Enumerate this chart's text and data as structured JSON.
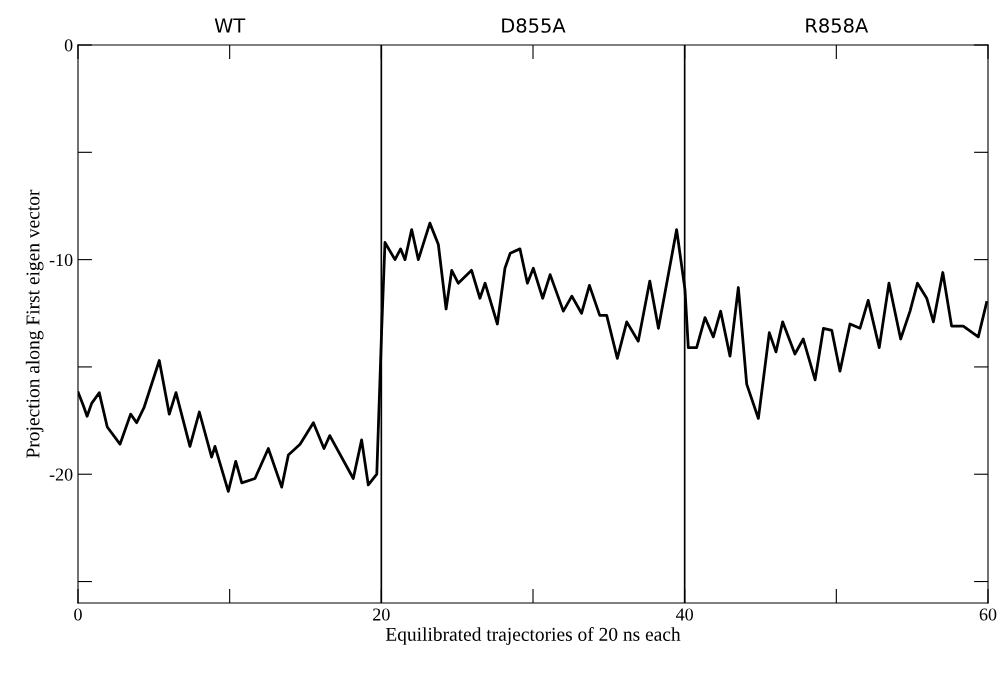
{
  "chart_data": {
    "type": "line",
    "xlabel": "Equilibrated trajectories of 20 ns each",
    "ylabel": "Projection along First eigen vector",
    "xlim": [
      0,
      60
    ],
    "ylim": [
      -26,
      0
    ],
    "xticks": [
      0,
      {
        "value": 10,
        "label": null
      },
      20,
      {
        "value": 30,
        "label": null
      },
      40,
      {
        "value": 50,
        "label": null
      },
      60
    ],
    "yticks": [
      0,
      {
        "value": -5,
        "label": null
      },
      -10,
      {
        "value": -15,
        "label": null
      },
      -20,
      {
        "value": -25,
        "label": null
      }
    ],
    "grid": false,
    "legend": false,
    "marker": "none",
    "line_style": "solid",
    "ref_lines": [
      {
        "axis": "x",
        "value": 20,
        "color": "#000000"
      },
      {
        "axis": "x",
        "value": 40,
        "color": "#000000"
      }
    ],
    "annotations": [
      "WT",
      "D855A",
      "R858A"
    ],
    "series": [
      {
        "color": "#000000",
        "x": [
          0.02,
          0.35,
          0.6,
          0.9,
          1.4,
          1.93,
          2.77,
          3.47,
          3.87,
          4.35,
          5.36,
          6.02,
          6.46,
          7.38,
          8.0,
          8.81,
          9.03,
          9.91,
          10.4,
          10.8,
          11.67,
          12.55,
          13.43,
          13.87,
          14.64,
          15.52,
          16.22,
          16.6,
          18.15,
          18.7,
          19.14,
          19.7,
          20.02,
          20.24,
          20.9,
          21.27,
          21.56,
          22.0,
          22.44,
          23.2,
          23.76,
          24.27,
          24.64,
          25.07,
          25.95,
          26.5,
          26.84,
          27.65,
          28.15,
          28.5,
          29.14,
          29.63,
          30.02,
          30.64,
          31.13,
          32.0,
          32.56,
          33.2,
          33.72,
          34.4,
          34.86,
          35.56,
          36.18,
          36.94,
          37.7,
          38.27,
          39.47,
          40.02,
          40.24,
          40.79,
          41.34,
          41.89,
          42.37,
          42.99,
          43.54,
          44.09,
          44.86,
          45.58,
          46.02,
          46.46,
          47.27,
          47.82,
          48.6,
          49.15,
          49.7,
          50.24,
          50.9,
          51.56,
          52.1,
          52.83,
          53.47,
          54.24,
          54.86,
          55.35,
          55.96,
          56.4,
          57.02,
          57.6,
          58.37,
          59.36,
          59.91
        ],
        "values": [
          -16.2,
          -16.8,
          -17.3,
          -16.7,
          -16.2,
          -17.8,
          -18.6,
          -17.2,
          -17.6,
          -16.9,
          -14.7,
          -17.2,
          -16.2,
          -18.7,
          -17.1,
          -19.2,
          -18.7,
          -20.8,
          -19.4,
          -20.4,
          -20.2,
          -18.8,
          -20.6,
          -19.1,
          -18.6,
          -17.6,
          -18.8,
          -18.2,
          -20.2,
          -18.4,
          -20.5,
          -20.0,
          -13.3,
          -9.2,
          -10.0,
          -9.5,
          -10.0,
          -8.6,
          -10.0,
          -8.3,
          -9.3,
          -12.3,
          -10.5,
          -11.1,
          -10.5,
          -11.8,
          -11.1,
          -13.0,
          -10.4,
          -9.7,
          -9.5,
          -11.1,
          -10.4,
          -11.8,
          -10.7,
          -12.4,
          -11.7,
          -12.5,
          -11.2,
          -12.6,
          -12.6,
          -14.6,
          -12.9,
          -13.8,
          -11.0,
          -13.2,
          -8.6,
          -11.4,
          -14.1,
          -14.1,
          -12.7,
          -13.6,
          -12.4,
          -14.5,
          -11.3,
          -15.8,
          -17.4,
          -13.4,
          -14.3,
          -12.9,
          -14.4,
          -13.7,
          -15.6,
          -13.2,
          -13.3,
          -15.2,
          -13.0,
          -13.2,
          -11.9,
          -14.1,
          -11.1,
          -13.7,
          -12.4,
          -11.1,
          -11.8,
          -12.9,
          -10.6,
          -13.1,
          -13.1,
          -13.6,
          -12.0
        ]
      }
    ]
  }
}
